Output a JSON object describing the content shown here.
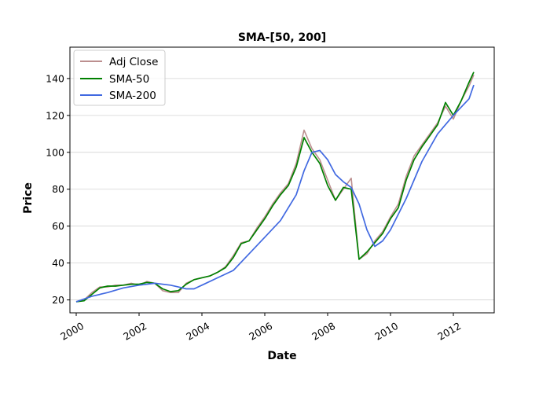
{
  "chart_data": {
    "type": "line",
    "title": "SMA-[50, 200]",
    "xlabel": "Date",
    "ylabel": "Price",
    "xlim": [
      1999.8,
      2013.3
    ],
    "ylim": [
      13,
      157
    ],
    "xticks": [
      2000,
      2002,
      2004,
      2006,
      2008,
      2010,
      2012
    ],
    "xtick_labels": [
      "2000",
      "2002",
      "2004",
      "2006",
      "2008",
      "2010",
      "2012"
    ],
    "yticks": [
      20,
      40,
      60,
      80,
      100,
      120,
      140
    ],
    "ytick_labels": [
      "20",
      "40",
      "60",
      "80",
      "100",
      "120",
      "140"
    ],
    "grid": "horizontal",
    "legend_position": "top-left",
    "series": [
      {
        "name": "Adj Close",
        "color": "#bc8f8f",
        "x": [
          2000.0,
          2000.25,
          2000.5,
          2000.75,
          2001.0,
          2001.25,
          2001.5,
          2001.75,
          2002.0,
          2002.25,
          2002.5,
          2002.75,
          2003.0,
          2003.25,
          2003.5,
          2003.75,
          2004.0,
          2004.25,
          2004.5,
          2004.75,
          2005.0,
          2005.25,
          2005.5,
          2005.75,
          2006.0,
          2006.25,
          2006.5,
          2006.75,
          2007.0,
          2007.25,
          2007.5,
          2007.75,
          2008.0,
          2008.25,
          2008.5,
          2008.75,
          2009.0,
          2009.25,
          2009.5,
          2009.75,
          2010.0,
          2010.25,
          2010.5,
          2010.75,
          2011.0,
          2011.25,
          2011.5,
          2011.75,
          2012.0,
          2012.25,
          2012.5,
          2012.65
        ],
        "values": [
          19,
          20,
          24,
          27,
          27,
          28,
          28,
          29,
          28,
          30,
          29,
          25,
          24,
          24,
          29,
          31,
          32,
          33,
          35,
          38,
          44,
          51,
          52,
          59,
          65,
          72,
          78,
          83,
          94,
          112,
          102,
          96,
          85,
          74,
          80,
          86,
          42,
          45,
          52,
          57,
          65,
          72,
          87,
          98,
          104,
          110,
          116,
          125,
          118,
          128,
          136,
          142
        ]
      },
      {
        "name": "SMA-50",
        "color": "#008000",
        "x": [
          2000.0,
          2000.25,
          2000.5,
          2000.75,
          2001.0,
          2001.25,
          2001.5,
          2001.75,
          2002.0,
          2002.25,
          2002.5,
          2002.75,
          2003.0,
          2003.25,
          2003.5,
          2003.75,
          2004.0,
          2004.25,
          2004.5,
          2004.75,
          2005.0,
          2005.25,
          2005.5,
          2005.75,
          2006.0,
          2006.25,
          2006.5,
          2006.75,
          2007.0,
          2007.25,
          2007.5,
          2007.75,
          2008.0,
          2008.25,
          2008.5,
          2008.75,
          2009.0,
          2009.25,
          2009.5,
          2009.75,
          2010.0,
          2010.25,
          2010.5,
          2010.75,
          2011.0,
          2011.25,
          2011.5,
          2011.75,
          2012.0,
          2012.25,
          2012.5,
          2012.65
        ],
        "values": [
          19,
          19.5,
          23,
          26.5,
          27.5,
          27.5,
          28,
          28.5,
          28.5,
          29.5,
          29,
          26,
          24.5,
          25,
          28.5,
          31,
          32,
          33,
          35,
          37.5,
          43,
          50.5,
          52,
          58,
          64,
          71,
          77,
          82,
          92,
          108,
          100,
          94,
          82,
          74,
          81,
          80,
          42,
          46,
          51,
          56,
          64,
          70,
          85,
          96,
          103,
          109,
          115,
          127,
          120,
          128,
          138,
          143.5
        ]
      },
      {
        "name": "SMA-200",
        "color": "#4169e1",
        "x": [
          2000.0,
          2000.5,
          2001.0,
          2001.5,
          2002.0,
          2002.5,
          2003.0,
          2003.25,
          2003.5,
          2003.75,
          2004.0,
          2004.5,
          2005.0,
          2005.5,
          2006.0,
          2006.5,
          2007.0,
          2007.25,
          2007.5,
          2007.75,
          2008.0,
          2008.25,
          2008.5,
          2008.75,
          2009.0,
          2009.25,
          2009.5,
          2009.75,
          2010.0,
          2010.5,
          2011.0,
          2011.5,
          2012.0,
          2012.5,
          2012.65
        ],
        "values": [
          19,
          22,
          24,
          26.5,
          28,
          29,
          28,
          27,
          26,
          26,
          28,
          32,
          36,
          45,
          54,
          63,
          77,
          90,
          100,
          101,
          96,
          88,
          84,
          81,
          72,
          58,
          49,
          52,
          58,
          75,
          95,
          110,
          120,
          129,
          136.5
        ]
      }
    ]
  }
}
